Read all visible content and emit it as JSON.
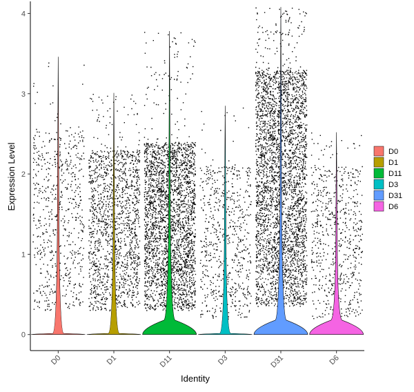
{
  "chart_data": {
    "type": "violin",
    "xlabel": "Identity",
    "ylabel": "Expression Level",
    "ylim": [
      -0.2,
      4.15
    ],
    "yticks": [
      0,
      1,
      2,
      3,
      4
    ],
    "categories": [
      "D0",
      "D1",
      "D11",
      "D3",
      "D31",
      "D6"
    ],
    "colors": {
      "D0": "#F8766D",
      "D1": "#B79F00",
      "D11": "#00BA38",
      "D3": "#00BFC4",
      "D31": "#619CFF",
      "D6": "#F564E3"
    },
    "series": [
      {
        "name": "D0",
        "max": 3.46,
        "points_band": [
          0.3,
          2.55
        ],
        "jitter_count": 650
      },
      {
        "name": "D1",
        "max": 3.01,
        "points_band": [
          0.3,
          2.3
        ],
        "jitter_count": 1500
      },
      {
        "name": "D11",
        "max": 3.78,
        "points_band": [
          0.3,
          2.4
        ],
        "jitter_count": 2800
      },
      {
        "name": "D3",
        "max": 2.85,
        "points_band": [
          0.2,
          2.1
        ],
        "jitter_count": 650
      },
      {
        "name": "D31",
        "max": 4.08,
        "points_band": [
          0.35,
          3.3
        ],
        "jitter_count": 4400
      },
      {
        "name": "D6",
        "max": 2.52,
        "points_band": [
          0.2,
          2.1
        ],
        "jitter_count": 650
      }
    ],
    "legend": {
      "position": "right",
      "entries": [
        "D0",
        "D1",
        "D11",
        "D3",
        "D31",
        "D6"
      ]
    },
    "grid": false
  }
}
